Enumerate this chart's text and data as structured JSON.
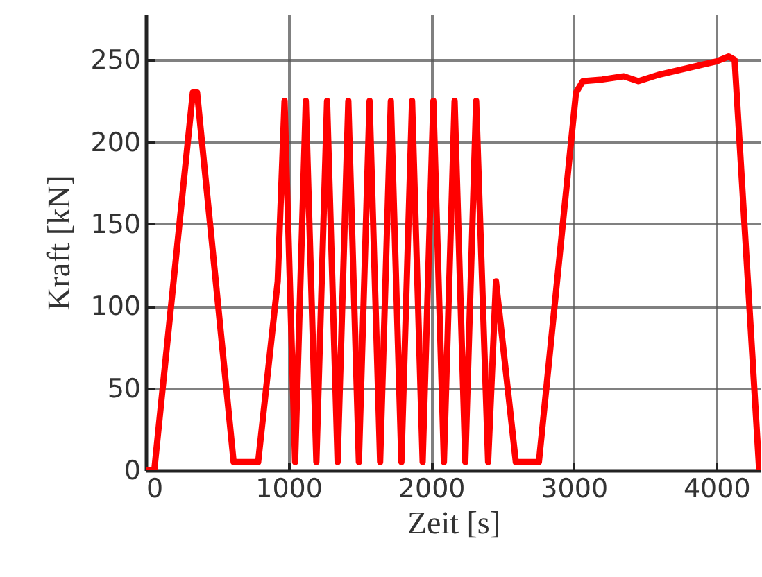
{
  "chart_data": {
    "type": "line",
    "xlabel": "Zeit [s]",
    "ylabel": "Kraft [kN]",
    "xlim": [
      0,
      4310
    ],
    "ylim": [
      0,
      278
    ],
    "xticks": [
      0,
      1000,
      2000,
      3000,
      4000
    ],
    "yticks": [
      0,
      50,
      100,
      150,
      200,
      250
    ],
    "grid": true,
    "line_style": "solid",
    "marker": "none",
    "series": [
      {
        "color": "#ff0000",
        "x": [
          0,
          60,
          330,
          360,
          616,
          788,
          925,
          973,
          1047,
          1122,
          1196,
          1271,
          1345,
          1420,
          1494,
          1569,
          1643,
          1718,
          1792,
          1867,
          1941,
          2016,
          2090,
          2165,
          2240,
          2316,
          2400,
          2455,
          2594,
          2756,
          3016,
          3064,
          3200,
          3350,
          3453,
          3600,
          3800,
          4000,
          4086,
          4128,
          4300
        ],
        "values": [
          0,
          0,
          230,
          230,
          5,
          5,
          115,
          225,
          5,
          225,
          5,
          225,
          5,
          225,
          5,
          225,
          5,
          225,
          5,
          225,
          5,
          225,
          5,
          225,
          5,
          225,
          5,
          115,
          5,
          5,
          230,
          237,
          238,
          240,
          237,
          241,
          245,
          249,
          252,
          250,
          0
        ]
      }
    ]
  }
}
